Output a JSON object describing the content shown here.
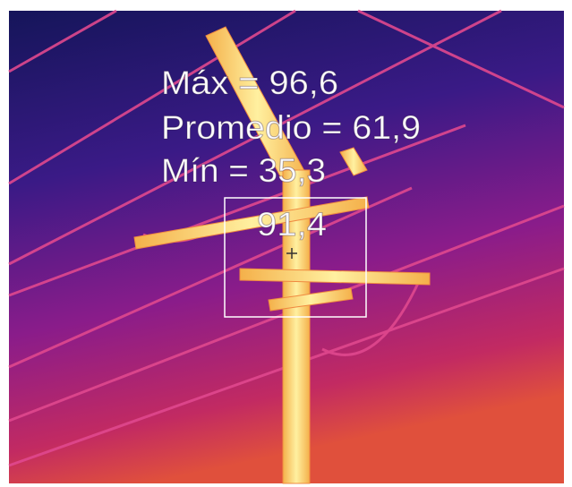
{
  "overlay": {
    "stats": [
      "Máx = 96,6",
      "Promedio = 61,9",
      "Mín = 35,3"
    ],
    "spot": "91,4"
  }
}
